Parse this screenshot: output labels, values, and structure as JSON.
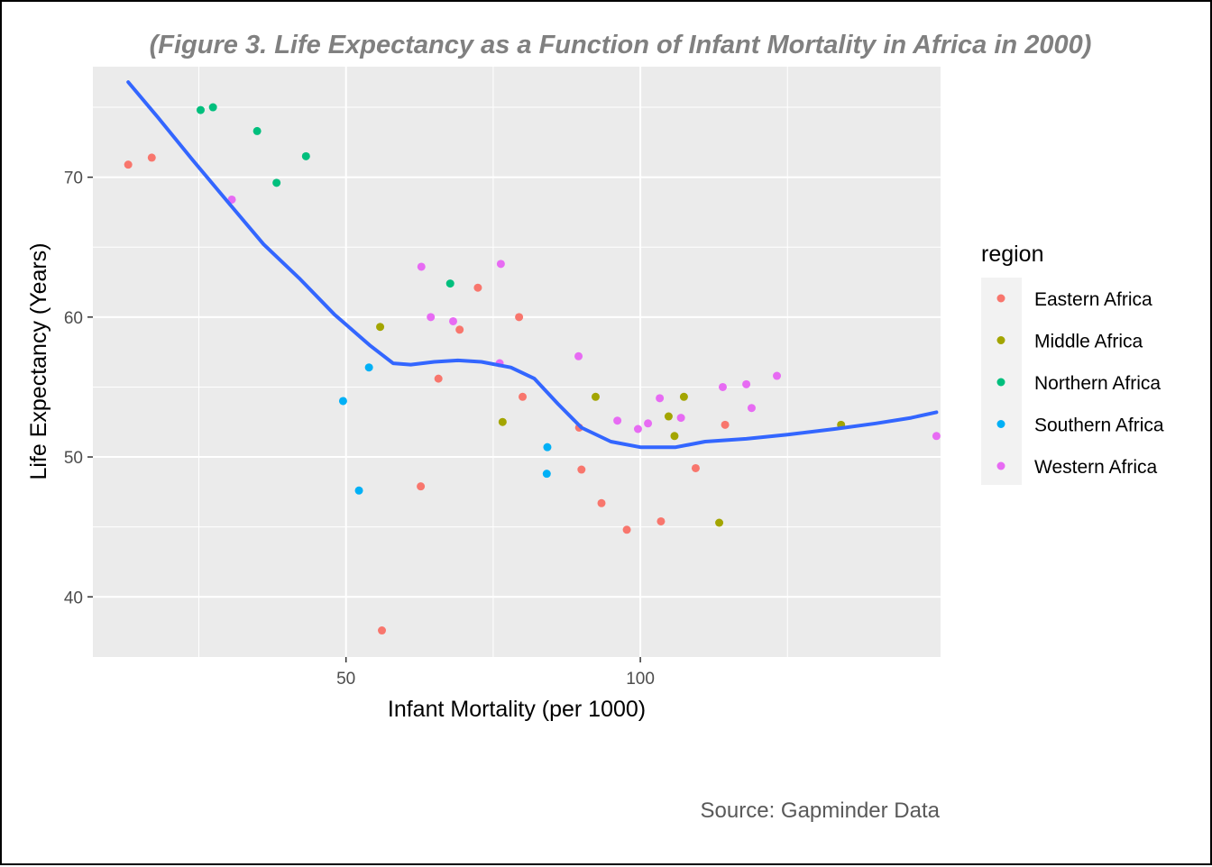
{
  "chart_data": {
    "type": "scatter",
    "title": "(Figure 3. Life Expectancy as a Function of Infant Mortality in Africa in 2000)",
    "xlabel": "Infant Mortality (per 1000)",
    "ylabel": "Life Expectancy (Years)",
    "caption": "Source: Gapminder Data",
    "xlim": [
      7,
      151
    ],
    "ylim": [
      35.7,
      77.9
    ],
    "x_ticks": [
      {
        "value": 50,
        "label": "50"
      },
      {
        "value": 100,
        "label": "100"
      }
    ],
    "x_minor_ticks": [
      25,
      75,
      125
    ],
    "y_ticks": [
      {
        "value": 40,
        "label": "40"
      },
      {
        "value": 50,
        "label": "50"
      },
      {
        "value": 60,
        "label": "60"
      },
      {
        "value": 70,
        "label": "70"
      }
    ],
    "y_minor_ticks": [
      45,
      55,
      65,
      75
    ],
    "grid": true,
    "legend": {
      "title": "region",
      "position": "right"
    },
    "series": [
      {
        "name": "Eastern Africa",
        "color": "#F8766D",
        "points": [
          [
            13.0,
            70.9
          ],
          [
            17.0,
            71.4
          ],
          [
            56.1,
            37.6
          ],
          [
            62.7,
            47.9
          ],
          [
            65.7,
            55.6
          ],
          [
            69.3,
            59.1
          ],
          [
            72.4,
            62.1
          ],
          [
            79.4,
            60.0
          ],
          [
            80.0,
            54.3
          ],
          [
            89.6,
            52.1
          ],
          [
            90.0,
            49.1
          ],
          [
            93.4,
            46.7
          ],
          [
            97.7,
            44.8
          ],
          [
            103.5,
            45.4
          ],
          [
            109.4,
            49.2
          ],
          [
            114.4,
            52.3
          ]
        ]
      },
      {
        "name": "Middle Africa",
        "color": "#A3A500",
        "points": [
          [
            55.8,
            59.3
          ],
          [
            76.6,
            52.5
          ],
          [
            92.4,
            54.3
          ],
          [
            104.8,
            52.9
          ],
          [
            105.8,
            51.5
          ],
          [
            107.4,
            54.3
          ],
          [
            113.4,
            45.3
          ],
          [
            134.1,
            52.3
          ]
        ]
      },
      {
        "name": "Northern Africa",
        "color": "#00BF7D",
        "points": [
          [
            25.3,
            74.8
          ],
          [
            27.4,
            75.0
          ],
          [
            34.9,
            73.3
          ],
          [
            38.2,
            69.6
          ],
          [
            43.2,
            71.5
          ],
          [
            67.7,
            62.4
          ]
        ]
      },
      {
        "name": "Southern Africa",
        "color": "#00B0F6",
        "points": [
          [
            49.5,
            54.0
          ],
          [
            52.2,
            47.6
          ],
          [
            53.9,
            56.4
          ],
          [
            84.1,
            48.8
          ],
          [
            84.2,
            50.7
          ]
        ]
      },
      {
        "name": "Western Africa",
        "color": "#E76BF3",
        "points": [
          [
            30.6,
            68.4
          ],
          [
            62.8,
            63.6
          ],
          [
            64.4,
            60.0
          ],
          [
            68.2,
            59.7
          ],
          [
            76.1,
            56.7
          ],
          [
            76.3,
            63.8
          ],
          [
            89.5,
            57.2
          ],
          [
            96.1,
            52.6
          ],
          [
            99.6,
            52.0
          ],
          [
            101.3,
            52.4
          ],
          [
            103.3,
            54.2
          ],
          [
            106.9,
            52.8
          ],
          [
            118.0,
            55.2
          ],
          [
            118.9,
            53.5
          ],
          [
            123.2,
            55.8
          ],
          [
            114.0,
            55.0
          ],
          [
            150.3,
            51.5
          ]
        ]
      }
    ],
    "smooth_line": {
      "color": "#3366FF",
      "points": [
        [
          13.0,
          76.8
        ],
        [
          18.0,
          74.3
        ],
        [
          24.0,
          71.2
        ],
        [
          30.0,
          68.2
        ],
        [
          36.0,
          65.2
        ],
        [
          42.0,
          62.8
        ],
        [
          48.0,
          60.2
        ],
        [
          54.0,
          58.0
        ],
        [
          58.0,
          56.7
        ],
        [
          61.0,
          56.6
        ],
        [
          65.0,
          56.8
        ],
        [
          69.0,
          56.9
        ],
        [
          73.0,
          56.8
        ],
        [
          78.0,
          56.4
        ],
        [
          82.0,
          55.6
        ],
        [
          86.0,
          53.8
        ],
        [
          90.0,
          52.1
        ],
        [
          95.0,
          51.1
        ],
        [
          100.0,
          50.7
        ],
        [
          106.0,
          50.7
        ],
        [
          111.0,
          51.1
        ],
        [
          118.0,
          51.3
        ],
        [
          125.0,
          51.6
        ],
        [
          133.0,
          52.0
        ],
        [
          140.0,
          52.4
        ],
        [
          146.0,
          52.8
        ],
        [
          150.3,
          53.2
        ]
      ]
    }
  }
}
